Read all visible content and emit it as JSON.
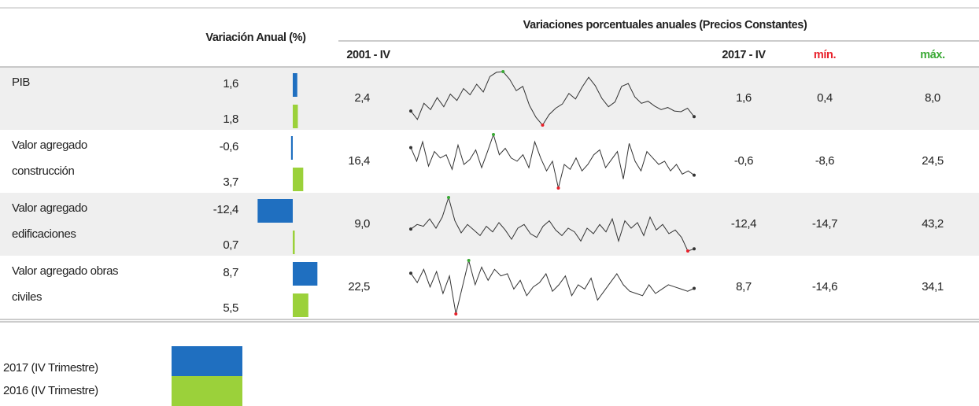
{
  "header": {
    "annual": "Variación Anual (%)",
    "group": "Variaciones porcentuales anuales  (Precios Constantes)",
    "start": "2001 - IV",
    "end": "2017 - IV",
    "min": "mín.",
    "max": "máx.",
    "min_color": "#e8202a",
    "max_color": "#3aa935"
  },
  "legend": [
    {
      "name": "2017 (IV Trimestre)",
      "color": "#1f6fc0"
    },
    {
      "name": "2016 (IV Trimestre)",
      "color": "#9bd13a"
    }
  ],
  "rows": [
    {
      "label": [
        "PIB"
      ],
      "values": [
        1.6,
        1.8,
        2.4,
        1.6,
        0.4,
        8.0
      ],
      "value_labels": [
        "1,6",
        "1,8",
        "2,4",
        "1,6",
        "0,4",
        "8,0"
      ],
      "spark": [
        2.4,
        1.2,
        3.5,
        2.6,
        4.3,
        3.0,
        4.8,
        3.9,
        5.6,
        4.7,
        6.2,
        5.1,
        7.3,
        7.9,
        8.0,
        6.9,
        5.3,
        5.9,
        3.2,
        1.5,
        0.4,
        1.9,
        2.8,
        3.4,
        4.9,
        4.1,
        5.8,
        7.2,
        6.0,
        4.2,
        3.0,
        3.7,
        5.9,
        6.3,
        4.4,
        3.5,
        3.8,
        3.1,
        2.6,
        2.9,
        2.4,
        2.3,
        2.8,
        1.6
      ]
    },
    {
      "label": [
        "Valor agregado",
        "construcción"
      ],
      "values": [
        -0.6,
        3.7,
        16.4,
        -0.6,
        -8.6,
        24.5
      ],
      "value_labels": [
        "-0,6",
        "3,7",
        "16,4",
        "-0,6",
        "-8,6",
        "24,5"
      ],
      "spark": [
        16.4,
        8,
        20,
        5,
        14,
        10,
        12,
        3,
        18,
        6,
        9,
        15,
        4,
        14,
        24.5,
        12,
        16,
        10,
        8,
        12,
        4,
        20,
        10,
        2,
        8,
        -8.6,
        6,
        3,
        10,
        2,
        6,
        12,
        15,
        4,
        9,
        14,
        -3,
        19,
        8,
        2,
        14,
        10,
        6,
        8,
        2,
        6,
        0,
        2,
        -0.6
      ]
    },
    {
      "label": [
        "Valor agregado",
        "edificaciones"
      ],
      "values": [
        -12.4,
        0.7,
        9.0,
        -12.4,
        -14.7,
        43.2
      ],
      "value_labels": [
        "-12,4",
        "0,7",
        "9,0",
        "-12,4",
        "-14,7",
        "43,2"
      ],
      "spark": [
        9.0,
        14,
        12,
        20,
        10,
        22,
        43.2,
        18,
        5,
        14,
        8,
        2,
        12,
        6,
        16,
        8,
        -2,
        10,
        14,
        4,
        0,
        12,
        18,
        8,
        2,
        10,
        6,
        -4,
        10,
        4,
        14,
        6,
        20,
        -4,
        18,
        10,
        16,
        2,
        22,
        8,
        14,
        4,
        8,
        0,
        -14.7,
        -12.4
      ]
    },
    {
      "label": [
        "Valor agregado obras",
        "civiles"
      ],
      "values": [
        8.7,
        5.5,
        22.5,
        8.7,
        -14.6,
        34.1
      ],
      "value_labels": [
        "8,7",
        "5,5",
        "22,5",
        "8,7",
        "-14,6",
        "34,1"
      ],
      "spark": [
        22.5,
        14,
        26,
        10,
        24,
        4,
        20,
        -14.6,
        10,
        34.1,
        12,
        28,
        16,
        26,
        20,
        22,
        8,
        16,
        2,
        10,
        14,
        22,
        6,
        12,
        20,
        2,
        12,
        8,
        18,
        -2,
        6,
        14,
        22,
        12,
        6,
        4,
        2,
        12,
        4,
        8,
        12,
        10,
        8,
        6,
        8.7
      ]
    }
  ]
}
